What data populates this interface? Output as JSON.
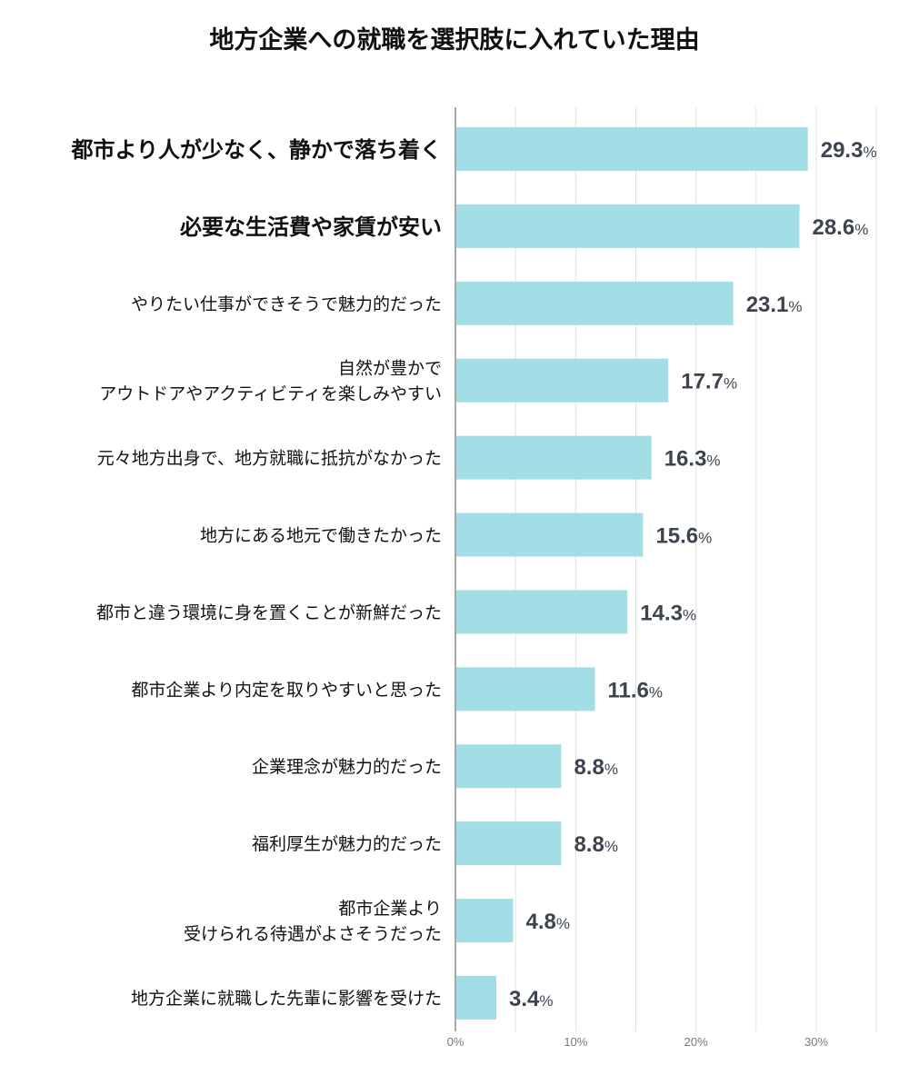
{
  "chart_data": {
    "type": "bar",
    "orientation": "horizontal",
    "title": "地方企業への就職を選択肢に入れていた理由",
    "categories": [
      [
        "都市より人が少なく、静かで落ち着く"
      ],
      [
        "必要な生活費や家賃が安い"
      ],
      [
        "やりたい仕事ができそうで魅力的だった"
      ],
      [
        "自然が豊かで",
        "アウトドアやアクティビティを楽しみやすい"
      ],
      [
        "元々地方出身で、地方就職に抵抗がなかった"
      ],
      [
        "地方にある地元で働きたかった"
      ],
      [
        "都市と違う環境に身を置くことが新鮮だった"
      ],
      [
        "都市企業より内定を取りやすいと思った"
      ],
      [
        "企業理念が魅力的だった"
      ],
      [
        "福利厚生が魅力的だった"
      ],
      [
        "都市企業より",
        "受けられる待遇がよさそうだった"
      ],
      [
        "地方企業に就職した先輩に影響を受けた"
      ]
    ],
    "values": [
      29.3,
      28.6,
      23.1,
      17.7,
      16.3,
      15.6,
      14.3,
      11.6,
      8.8,
      8.8,
      4.8,
      3.4
    ],
    "value_suffix": "%",
    "xlim": [
      0,
      35
    ],
    "xticks": [
      "0%",
      "10%",
      "20%",
      "30%"
    ],
    "xtick_values": [
      0,
      10,
      20,
      30
    ],
    "grid": true,
    "grid_step": 5,
    "bar_color": "#a3dde6",
    "label_color": "#3c4450",
    "legend": "none"
  }
}
